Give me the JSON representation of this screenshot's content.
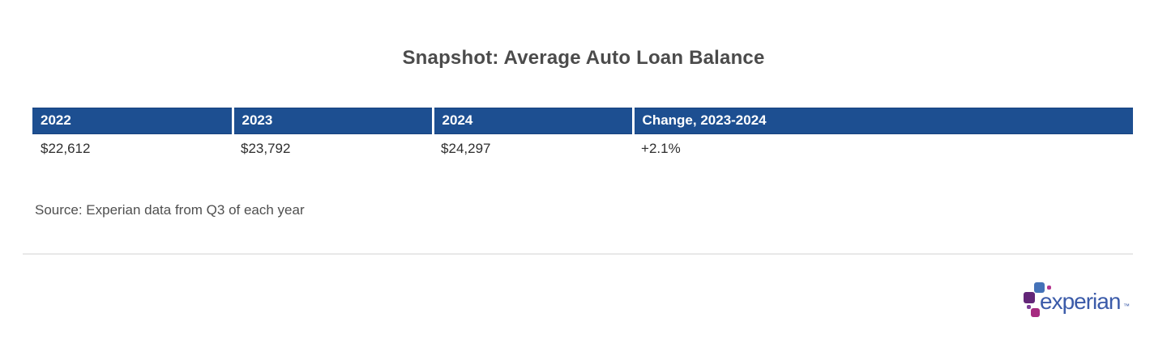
{
  "header": {
    "title": "Snapshot: Average Auto Loan Balance"
  },
  "table": {
    "columns": [
      "2022",
      "2023",
      "2024",
      "Change, 2023-2024"
    ],
    "rows": [
      [
        "$22,612",
        "$23,792",
        "$24,297",
        "+2.1%"
      ]
    ]
  },
  "footer": {
    "source_note": "Source: Experian data from Q3 of each year"
  },
  "logo": {
    "wordmark": "experian",
    "trademark": "™"
  },
  "chart_data": {
    "type": "table",
    "title": "Snapshot: Average Auto Loan Balance",
    "columns": [
      "2022",
      "2023",
      "2024",
      "Change, 2023-2024"
    ],
    "rows": [
      [
        "$22,612",
        "$23,792",
        "$24,297",
        "+2.1%"
      ]
    ],
    "values": {
      "2022": 22612,
      "2023": 23792,
      "2024": 24297,
      "change_2023_2024_pct": 2.1
    },
    "source": "Source: Experian data from Q3 of each year"
  },
  "colors": {
    "header_bg": "#1d4f91",
    "header_text": "#ffffff",
    "title_text": "#4b4b4b",
    "body_text": "#2e2e2e",
    "source_text": "#4f4f4f",
    "divider": "#e8e8e8",
    "logo_wordmark_blue": "#3b5ba9",
    "logo_square_blue": "#4472b8",
    "logo_square_purple": "#632678",
    "logo_square_magenta": "#a62a80",
    "logo_dot_magenta": "#b5368f",
    "logo_dot_purple": "#7d3f98"
  }
}
